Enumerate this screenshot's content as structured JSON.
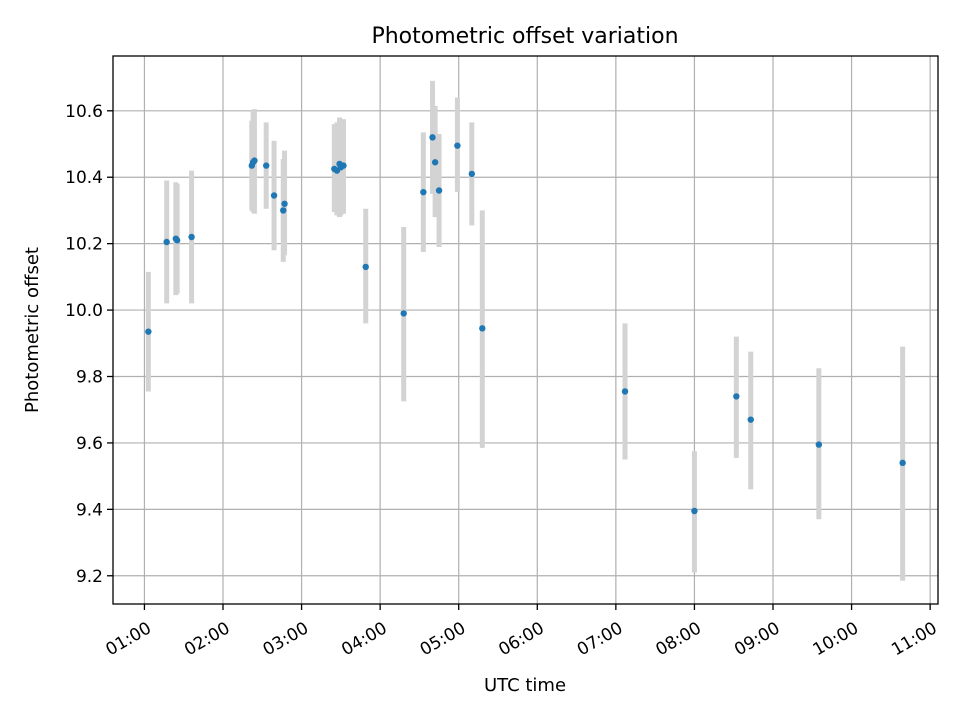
{
  "chart_data": {
    "type": "scatter",
    "title": "Photometric offset variation",
    "xlabel": "UTC time",
    "ylabel": "Photometric offset",
    "grid": true,
    "point_color": "#1f77b4",
    "errorbar_color": "#d3d3d3",
    "xlim": [
      "00:36",
      "11:06"
    ],
    "ylim": [
      9.115,
      10.765
    ],
    "x_ticks": [
      "01:00",
      "02:00",
      "03:00",
      "04:00",
      "05:00",
      "06:00",
      "07:00",
      "08:00",
      "09:00",
      "10:00",
      "11:00"
    ],
    "y_ticks": [
      "9.2",
      "9.4",
      "9.6",
      "9.8",
      "10.0",
      "10.2",
      "10.4",
      "10.6"
    ],
    "points": [
      {
        "x": "01:03",
        "y": 9.935,
        "err_low": 9.755,
        "err_high": 10.115
      },
      {
        "x": "01:17",
        "y": 10.205,
        "err_low": 10.02,
        "err_high": 10.39
      },
      {
        "x": "01:24",
        "y": 10.215,
        "err_low": 10.045,
        "err_high": 10.385
      },
      {
        "x": "01:25",
        "y": 10.21,
        "err_low": 10.05,
        "err_high": 10.38
      },
      {
        "x": "01:36",
        "y": 10.22,
        "err_low": 10.02,
        "err_high": 10.42
      },
      {
        "x": "02:22",
        "y": 10.435,
        "err_low": 10.3,
        "err_high": 10.57
      },
      {
        "x": "02:23",
        "y": 10.445,
        "err_low": 10.295,
        "err_high": 10.6
      },
      {
        "x": "02:24",
        "y": 10.45,
        "err_low": 10.29,
        "err_high": 10.605
      },
      {
        "x": "02:33",
        "y": 10.435,
        "err_low": 10.305,
        "err_high": 10.565
      },
      {
        "x": "02:39",
        "y": 10.345,
        "err_low": 10.18,
        "err_high": 10.51
      },
      {
        "x": "02:46",
        "y": 10.3,
        "err_low": 10.145,
        "err_high": 10.455
      },
      {
        "x": "02:47",
        "y": 10.32,
        "err_low": 10.165,
        "err_high": 10.48
      },
      {
        "x": "03:25",
        "y": 10.425,
        "err_low": 10.295,
        "err_high": 10.56
      },
      {
        "x": "03:27",
        "y": 10.42,
        "err_low": 10.285,
        "err_high": 10.565
      },
      {
        "x": "03:29",
        "y": 10.44,
        "err_low": 10.28,
        "err_high": 10.58
      },
      {
        "x": "03:30",
        "y": 10.43,
        "err_low": 10.285,
        "err_high": 10.575
      },
      {
        "x": "03:32",
        "y": 10.435,
        "err_low": 10.29,
        "err_high": 10.575
      },
      {
        "x": "03:49",
        "y": 10.13,
        "err_low": 9.96,
        "err_high": 10.305
      },
      {
        "x": "04:18",
        "y": 9.99,
        "err_low": 9.725,
        "err_high": 10.25
      },
      {
        "x": "04:33",
        "y": 10.355,
        "err_low": 10.175,
        "err_high": 10.535
      },
      {
        "x": "04:40",
        "y": 10.52,
        "err_low": 10.35,
        "err_high": 10.69
      },
      {
        "x": "04:42",
        "y": 10.445,
        "err_low": 10.28,
        "err_high": 10.615
      },
      {
        "x": "04:45",
        "y": 10.36,
        "err_low": 10.19,
        "err_high": 10.53
      },
      {
        "x": "04:59",
        "y": 10.495,
        "err_low": 10.355,
        "err_high": 10.64
      },
      {
        "x": "05:10",
        "y": 10.41,
        "err_low": 10.255,
        "err_high": 10.565
      },
      {
        "x": "05:18",
        "y": 9.945,
        "err_low": 9.585,
        "err_high": 10.3
      },
      {
        "x": "07:07",
        "y": 9.755,
        "err_low": 9.55,
        "err_high": 9.96
      },
      {
        "x": "08:00",
        "y": 9.395,
        "err_low": 9.21,
        "err_high": 9.575
      },
      {
        "x": "08:32",
        "y": 9.74,
        "err_low": 9.555,
        "err_high": 9.92
      },
      {
        "x": "08:43",
        "y": 9.67,
        "err_low": 9.46,
        "err_high": 9.875
      },
      {
        "x": "09:35",
        "y": 9.595,
        "err_low": 9.37,
        "err_high": 9.825
      },
      {
        "x": "10:39",
        "y": 9.54,
        "err_low": 9.185,
        "err_high": 9.89
      }
    ]
  }
}
